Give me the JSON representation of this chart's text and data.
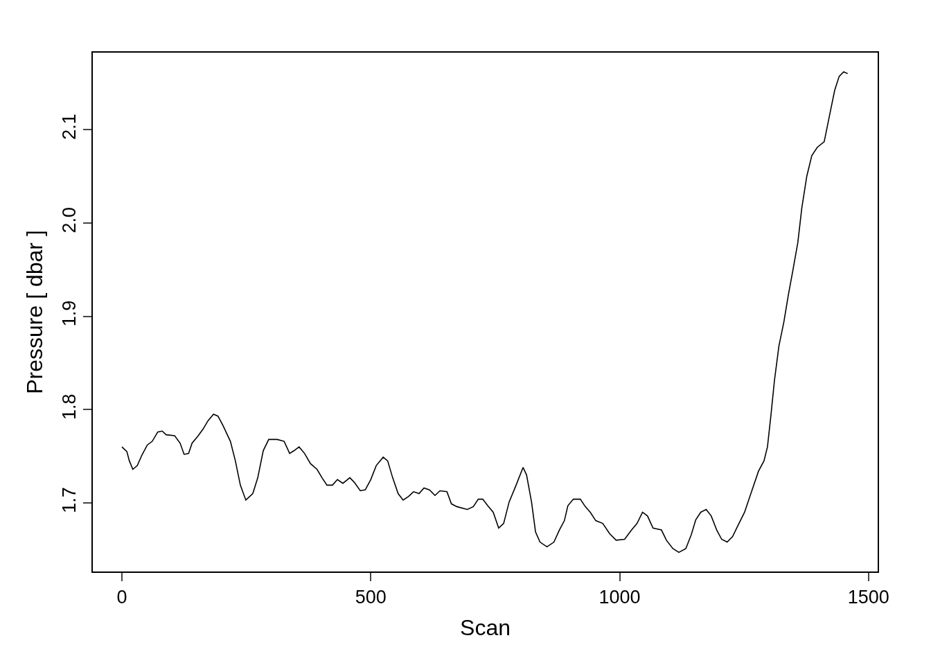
{
  "chart_data": {
    "type": "line",
    "xlabel": "Scan",
    "ylabel": "Pressure [ dbar ]",
    "grid": false,
    "legend": false,
    "marker": "none",
    "line_style": "solid",
    "xlim": [
      -58.4,
      1518.4
    ],
    "ylim": [
      1.6265,
      2.1825
    ],
    "xticks": [
      0,
      500,
      1000,
      1500
    ],
    "yticks": [
      1.7,
      1.8,
      1.9,
      {
        "value": 2,
        "label": "2.0"
      },
      2.1
    ],
    "series": [
      {
        "color": "#000000",
        "x": [
          0,
          10,
          15,
          22,
          31,
          40,
          51,
          61,
          72,
          81,
          89,
          106,
          117,
          125,
          134,
          141,
          152,
          163,
          173,
          184,
          193,
          203,
          218,
          228,
          238,
          249,
          263,
          273,
          284,
          295,
          312,
          326,
          337,
          346,
          356,
          367,
          379,
          392,
          402,
          412,
          423,
          433,
          444,
          458,
          467,
          479,
          489,
          500,
          511,
          525,
          534,
          544,
          555,
          565,
          576,
          586,
          597,
          607,
          618,
          629,
          639,
          653,
          662,
          673,
          694,
          706,
          716,
          725,
          735,
          746,
          757,
          767,
          778,
          792,
          806,
          813,
          823,
          831,
          840,
          854,
          868,
          879,
          889,
          896,
          907,
          921,
          931,
          941,
          952,
          966,
          980,
          993,
          1010,
          1024,
          1035,
          1046,
          1056,
          1067,
          1084,
          1094,
          1107,
          1119,
          1133,
          1144,
          1153,
          1163,
          1174,
          1184,
          1195,
          1205,
          1216,
          1227,
          1237,
          1251,
          1265,
          1279,
          1290,
          1297,
          1304,
          1311,
          1320,
          1330,
          1339,
          1348,
          1358,
          1366,
          1376,
          1386,
          1397,
          1411,
          1422,
          1432,
          1441,
          1450,
          1458
        ],
        "values": [
          1.76,
          1.755,
          1.745,
          1.736,
          1.74,
          1.751,
          1.762,
          1.766,
          1.776,
          1.777,
          1.773,
          1.772,
          1.764,
          1.752,
          1.753,
          1.764,
          1.771,
          1.779,
          1.788,
          1.795,
          1.793,
          1.783,
          1.766,
          1.745,
          1.719,
          1.703,
          1.71,
          1.727,
          1.756,
          1.768,
          1.768,
          1.766,
          1.753,
          1.756,
          1.76,
          1.753,
          1.742,
          1.736,
          1.727,
          1.719,
          1.719,
          1.725,
          1.721,
          1.727,
          1.722,
          1.713,
          1.714,
          1.725,
          1.74,
          1.749,
          1.745,
          1.727,
          1.71,
          1.703,
          1.707,
          1.712,
          1.71,
          1.716,
          1.714,
          1.708,
          1.713,
          1.712,
          1.699,
          1.696,
          1.693,
          1.696,
          1.704,
          1.704,
          1.697,
          1.69,
          1.673,
          1.678,
          1.701,
          1.719,
          1.738,
          1.73,
          1.701,
          1.669,
          1.658,
          1.653,
          1.658,
          1.671,
          1.681,
          1.697,
          1.704,
          1.704,
          1.696,
          1.69,
          1.681,
          1.678,
          1.667,
          1.66,
          1.661,
          1.671,
          1.678,
          1.69,
          1.686,
          1.673,
          1.671,
          1.66,
          1.651,
          1.647,
          1.651,
          1.666,
          1.682,
          1.69,
          1.693,
          1.686,
          1.671,
          1.661,
          1.658,
          1.664,
          1.675,
          1.69,
          1.712,
          1.734,
          1.745,
          1.76,
          1.794,
          1.831,
          1.868,
          1.894,
          1.923,
          1.949,
          1.979,
          2.016,
          2.05,
          2.072,
          2.081,
          2.087,
          2.116,
          2.142,
          2.157,
          2.162,
          2.16
        ]
      }
    ]
  }
}
